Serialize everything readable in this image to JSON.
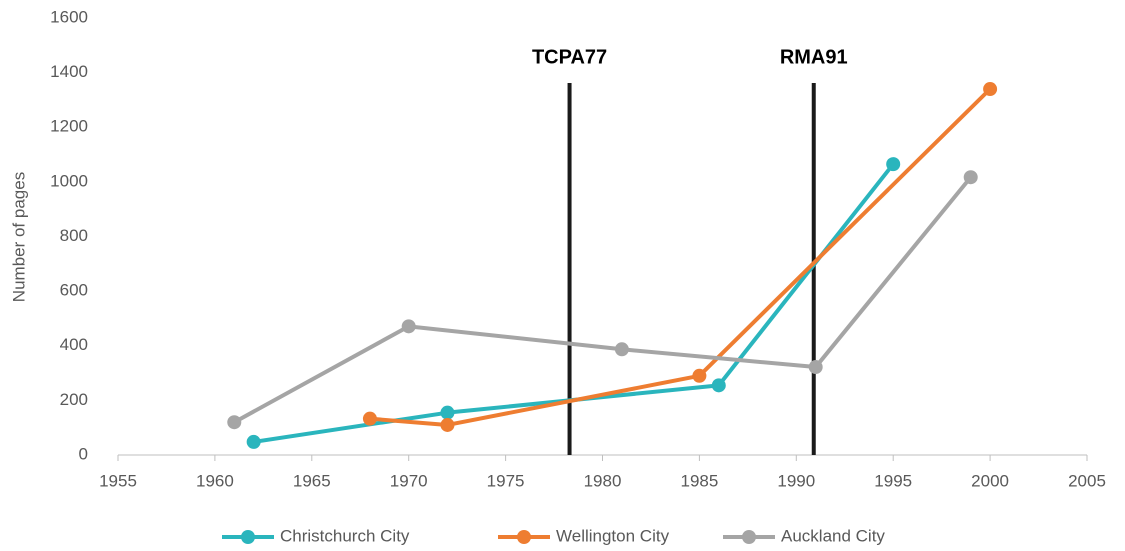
{
  "chart_data": {
    "type": "line",
    "y_label": "Number of pages",
    "xlim": [
      1955,
      2005
    ],
    "xticks": [
      1955,
      1960,
      1965,
      1970,
      1975,
      1980,
      1985,
      1990,
      1995,
      2000,
      2005
    ],
    "ylim": [
      0,
      1600
    ],
    "yticks": [
      0,
      200,
      400,
      600,
      800,
      1000,
      1200,
      1400,
      1600
    ],
    "grid": false,
    "legend": "bottom",
    "series": [
      {
        "name": "Christchurch City",
        "color": "#2ab5bd",
        "x": [
          1962,
          1972,
          1986,
          1995
        ],
        "values": [
          48,
          155,
          255,
          1065
        ]
      },
      {
        "name": "Wellington City",
        "color": "#ee7d31",
        "x": [
          1968,
          1972,
          1985,
          2000
        ],
        "values": [
          133,
          110,
          290,
          1340
        ]
      },
      {
        "name": "Auckland City",
        "color": "#a5a5a5",
        "x": [
          1961,
          1970,
          1981,
          1991,
          1999
        ],
        "values": [
          120,
          471,
          387,
          322,
          1017
        ]
      }
    ],
    "annotations": [
      {
        "text": "TCPA77",
        "x": 1978.3
      },
      {
        "text": "RMA91",
        "x": 1990.9
      }
    ]
  }
}
